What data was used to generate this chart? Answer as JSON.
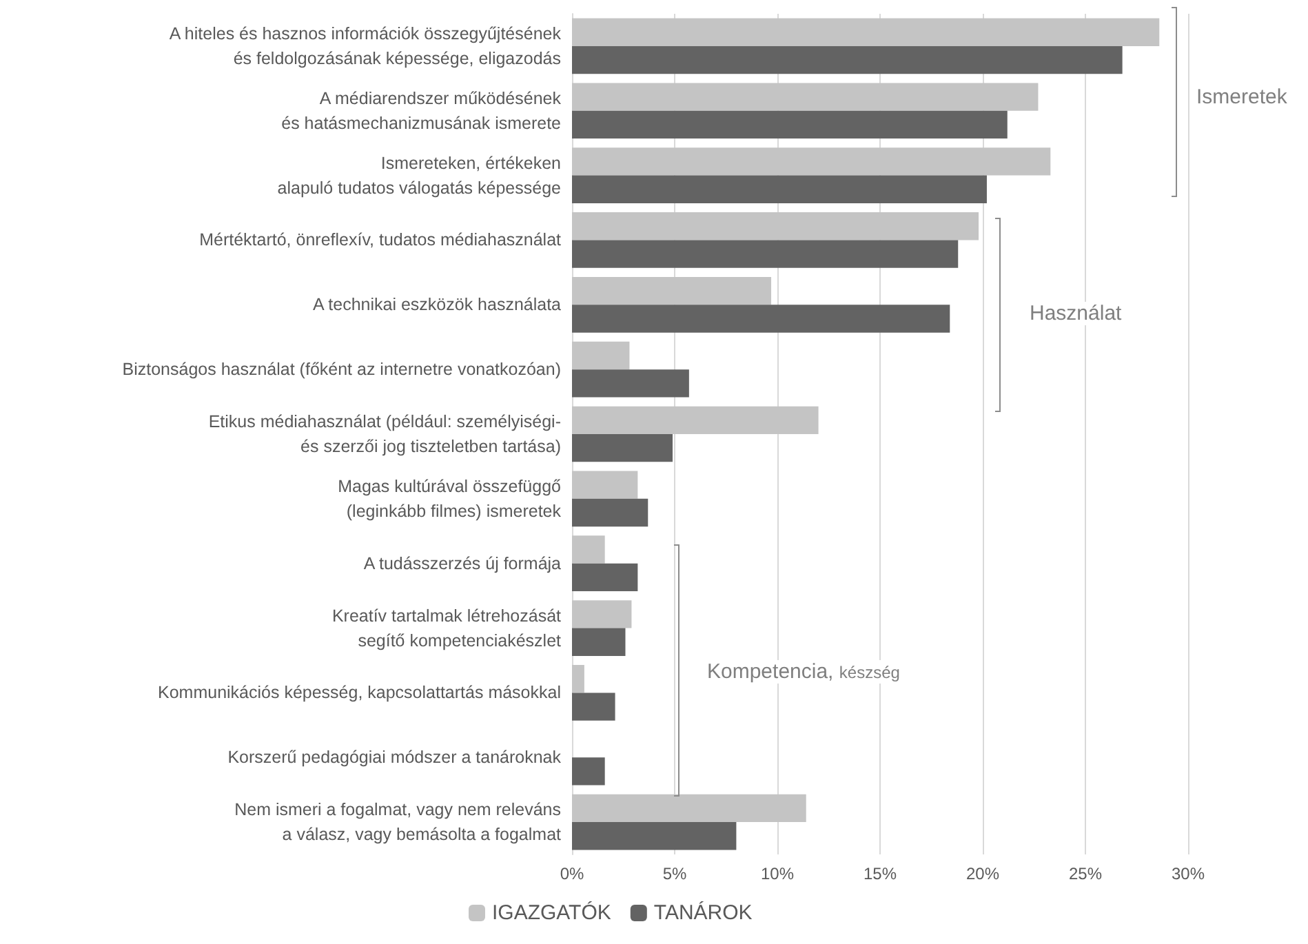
{
  "chart_data": {
    "type": "bar",
    "orientation": "horizontal",
    "categories": [
      "A hiteles és hasznos információk összegyűjtésének\nés feldolgozásának képessége, eligazodás",
      "A médiarendszer működésének\nés hatásmechanizmusának ismerete",
      "Ismereteken, értékeken\nalapuló tudatos válogatás képessége",
      "Mértéktartó, önreflexív, tudatos médiahasználat",
      "A technikai eszközök használata",
      "Biztonságos használat (főként az internetre vonatkozóan)",
      "Etikus médiahasználat (például: személyiségi-\nés szerzői jog tiszteletben tartása)",
      "Magas kultúrával összefüggő\n(leginkább filmes) ismeretek",
      "A tudásszerzés új formája",
      "Kreatív tartalmak létrehozását\nsegítő kompetenciakészlet",
      "Kommunikációs képesség, kapcsolattartás másokkal",
      "Korszerű pedagógiai módszer a tanároknak",
      "Nem ismeri a fogalmat, vagy nem releváns\na válasz, vagy bemásolta a fogalmat"
    ],
    "series": [
      {
        "name": "IGAZGATÓK",
        "color": "#c4c4c4",
        "values": [
          28.6,
          22.7,
          23.3,
          19.8,
          9.7,
          2.8,
          12.0,
          3.2,
          1.6,
          2.9,
          0.6,
          null,
          11.4
        ]
      },
      {
        "name": "TANÁROK",
        "color": "#636363",
        "values": [
          26.8,
          21.2,
          20.2,
          18.8,
          18.4,
          5.7,
          4.9,
          3.7,
          3.2,
          2.6,
          2.1,
          1.6,
          8.0
        ]
      }
    ],
    "xlim": [
      0,
      30
    ],
    "xticks": [
      {
        "value": 0,
        "label": "0%"
      },
      {
        "value": 5,
        "label": "5%"
      },
      {
        "value": 10,
        "label": "10%"
      },
      {
        "value": 15,
        "label": "15%"
      },
      {
        "value": 20,
        "label": "20%"
      },
      {
        "value": 25,
        "label": "25%"
      },
      {
        "value": 30,
        "label": "30%"
      }
    ],
    "grid": "x",
    "legend": "bottom",
    "annotations": [
      "Ismeretek",
      "Használat",
      "Kompetencia, készség"
    ]
  }
}
